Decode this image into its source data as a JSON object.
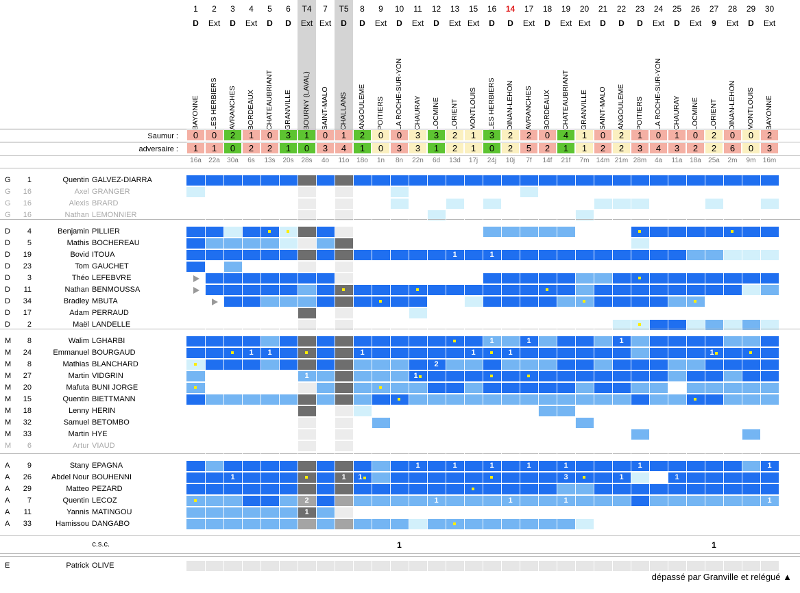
{
  "rounds": [
    {
      "n": "1",
      "t": "D",
      "opp": "BAYONNE",
      "s": "0",
      "a": "1",
      "col": "#f4b0a4",
      "d": "16a"
    },
    {
      "n": "2",
      "t": "Ext",
      "opp": "LES HERBIERS",
      "s": "0",
      "a": "1",
      "col": "#f4b0a4",
      "d": "22a"
    },
    {
      "n": "3",
      "t": "D",
      "opp": "AVRANCHES",
      "s": "2",
      "a": "0",
      "col": "#5dc431",
      "d": "30a"
    },
    {
      "n": "4",
      "t": "Ext",
      "opp": "BORDEAUX",
      "s": "1",
      "a": "2",
      "col": "#f4b0a4",
      "d": "6s"
    },
    {
      "n": "5",
      "t": "D",
      "opp": "CHATEAUBRIANT",
      "s": "0",
      "a": "2",
      "col": "#f4b0a4",
      "d": "13s"
    },
    {
      "n": "6",
      "t": "D",
      "opp": "GRANVILLE",
      "s": "3",
      "a": "1",
      "col": "#5dc431",
      "d": "20s"
    },
    {
      "n": "T4",
      "t": "Ext",
      "opp": "BOURNY (LAVAL)",
      "s": "1",
      "a": "0",
      "col": "#5dc431",
      "d": "28s",
      "cup": true
    },
    {
      "n": "7",
      "t": "Ext",
      "opp": "SAINT-MALO",
      "s": "0",
      "a": "3",
      "col": "#f4b0a4",
      "d": "4o"
    },
    {
      "n": "T5",
      "t": "D",
      "opp": "CHALLANS",
      "s": "1",
      "a": "4",
      "col": "#f4b0a4",
      "d": "11o",
      "cup": true
    },
    {
      "n": "8",
      "t": "D",
      "opp": "ANGOULEME",
      "s": "2",
      "a": "1",
      "col": "#5dc431",
      "d": "18o"
    },
    {
      "n": "9",
      "t": "Ext",
      "opp": "POITIERS",
      "s": "0",
      "a": "0",
      "col": "#fbf0c0",
      "d": "1n"
    },
    {
      "n": "10",
      "t": "D",
      "opp": "LA ROCHE-SUR-YON",
      "s": "0",
      "a": "3",
      "col": "#f4b0a4",
      "d": "8n"
    },
    {
      "n": "11",
      "t": "Ext",
      "opp": "CHAURAY",
      "s": "3",
      "a": "3",
      "col": "#fbf0c0",
      "d": "22n"
    },
    {
      "n": "12",
      "t": "D",
      "opp": "LOCMINE",
      "s": "3",
      "a": "1",
      "col": "#5dc431",
      "d": "6d"
    },
    {
      "n": "13",
      "t": "Ext",
      "opp": "LORIENT",
      "s": "2",
      "a": "2",
      "col": "#fbf0c0",
      "d": "13d"
    },
    {
      "n": "15",
      "t": "Ext",
      "opp": "MONTLOUIS",
      "s": "1",
      "a": "1",
      "col": "#fbf0c0",
      "d": "17j"
    },
    {
      "n": "16",
      "t": "D",
      "opp": "LES HERBIERS",
      "s": "3",
      "a": "0",
      "col": "#5dc431",
      "d": "24j"
    },
    {
      "n": "14",
      "t": "D",
      "opp": "DINAN-LEHON",
      "s": "2",
      "a": "2",
      "col": "#fbf0c0",
      "d": "10j",
      "red": true
    },
    {
      "n": "17",
      "t": "Ext",
      "opp": "AVRANCHES",
      "s": "2",
      "a": "5",
      "col": "#f4b0a4",
      "d": "7f"
    },
    {
      "n": "18",
      "t": "D",
      "opp": "BORDEAUX",
      "s": "0",
      "a": "2",
      "col": "#f4b0a4",
      "d": "14f"
    },
    {
      "n": "19",
      "t": "Ext",
      "opp": "CHATEAUBRIANT",
      "s": "4",
      "a": "1",
      "col": "#5dc431",
      "d": "21f"
    },
    {
      "n": "20",
      "t": "Ext",
      "opp": "GRANVILLE",
      "s": "1",
      "a": "1",
      "col": "#fbf0c0",
      "d": "7m"
    },
    {
      "n": "21",
      "t": "D",
      "opp": "SAINT-MALO",
      "s": "0",
      "a": "2",
      "col": "#f4b0a4",
      "d": "14m"
    },
    {
      "n": "22",
      "t": "D",
      "opp": "ANGOULEME",
      "s": "2",
      "a": "2",
      "col": "#fbf0c0",
      "d": "21m"
    },
    {
      "n": "23",
      "t": "D",
      "opp": "POITIERS",
      "s": "1",
      "a": "3",
      "col": "#f4b0a4",
      "d": "28m"
    },
    {
      "n": "24",
      "t": "Ext",
      "opp": "LA ROCHE-SUR-YON",
      "s": "0",
      "a": "4",
      "col": "#f4b0a4",
      "d": "4a"
    },
    {
      "n": "25",
      "t": "D",
      "opp": "CHAURAY",
      "s": "1",
      "a": "3",
      "col": "#f4b0a4",
      "d": "11a"
    },
    {
      "n": "26",
      "t": "Ext",
      "opp": "LOCMINE",
      "s": "0",
      "a": "2",
      "col": "#f4b0a4",
      "d": "18a"
    },
    {
      "n": "27",
      "t": "9",
      "opp": "LORIENT",
      "s": "2",
      "a": "2",
      "col": "#fbf0c0",
      "d": "25a"
    },
    {
      "n": "28",
      "t": "Ext",
      "opp": "DINAN-LEHON",
      "s": "0",
      "a": "6",
      "col": "#f4b0a4",
      "d": "2m"
    },
    {
      "n": "29",
      "t": "D",
      "opp": "MONTLOUIS",
      "s": "0",
      "a": "0",
      "col": "#fbf0c0",
      "d": "9m"
    },
    {
      "n": "30",
      "t": "Ext",
      "opp": "BAYONNE",
      "s": "2",
      "a": "3",
      "col": "#f4b0a4",
      "d": "16m"
    }
  ],
  "labels": {
    "saumur": "Saumur :",
    "adversaire": "adversaire :",
    "csc": "c.s.c.",
    "footer": "dépassé par Granville et relégué ▲"
  },
  "legend": {
    "starter": "#1f6ff0",
    "sub": "#74b5f3",
    "bench": "#d2f0fb",
    "cup_col": "#d4d4d4",
    "cup_dark": "#6e6e6e",
    "cup_mid": "#a4a4a4"
  },
  "csc_marks": [
    {
      "i": 11,
      "v": "1"
    },
    {
      "i": 28,
      "v": "1"
    }
  ],
  "groups": [
    {
      "players": [
        {
          "pos": "G",
          "num": "1",
          "first": "Quentin",
          "last": "GALVEZ-DIARRA",
          "c": "BBBBBBMBMBBBBBBBBBBBBBBBBBBBBBBB"
        },
        {
          "pos": "G",
          "num": "16",
          "first": "Axel",
          "last": "GRANGER",
          "c": "L..........L......L.............",
          "gray": true
        },
        {
          "pos": "G",
          "num": "16",
          "first": "Alexis",
          "last": "BRARD",
          "c": "...........L..L.L.....LLL...L..L",
          "gray": true
        },
        {
          "pos": "G",
          "num": "16",
          "first": "Nathan",
          "last": "LEMONNIER",
          "c": ".............L.......L..........",
          "gray": true
        }
      ]
    },
    {
      "players": [
        {
          "pos": "D",
          "num": "4",
          "first": "Benjamin",
          "last": "PILLIER",
          "c": "BBLBBLMB........SSSSS...BBBBBBBB",
          "m": {
            "4": "y",
            "5": "y",
            "24": "y",
            "29": "y"
          }
        },
        {
          "pos": "D",
          "num": "5",
          "first": "Mathis",
          "last": "BOCHEREAU",
          "c": "BSSSSL.SM...............L.......",
          "m": {}
        },
        {
          "pos": "D",
          "num": "19",
          "first": "Bovid",
          "last": "ITOUA",
          "c": "BBBBBBMBMBBBBBBBBBBBBBBBBBBSSLLL",
          "m": {
            "14": "1",
            "16": "1"
          }
        },
        {
          "pos": "D",
          "num": "23",
          "first": "Tom",
          "last": "GAUCHET",
          "c": "B.S.............................",
          "m": {}
        },
        {
          "pos": "D",
          "num": "3",
          "first": "Théo",
          "last": "LEFEBVRE",
          "c": "TBBBBBBB........BBBBBSSBBBBBBBBB",
          "m": {
            "14": "y",
            "24": "y"
          },
          "tri": [
            0
          ]
        },
        {
          "pos": "D",
          "num": "11",
          "first": "Nathan",
          "last": "BENMOUSSA",
          "c": "TBBBBBSBMBBBBBBBBBBBBSBBBBBBBBLS",
          "m": {
            "8": "y",
            "12": "y",
            "19": "y"
          },
          "tri": [
            0
          ]
        },
        {
          "pos": "D",
          "num": "34",
          "first": "Bradley",
          "last": "MBUTA",
          "c": ".TBBSSSBMBBBB..LBBBBSSBBBBSS....",
          "m": {
            "10": "y",
            "21": "y",
            "27": "y"
          },
          "tri": [
            1
          ]
        },
        {
          "pos": "D",
          "num": "17",
          "first": "Adam",
          "last": "PERRAUD",
          "c": "......M.....L...................",
          "m": {}
        },
        {
          "pos": "D",
          "num": "2",
          "first": "Maël",
          "last": "LANDELLE",
          "c": ".......................LLBBLSLSL",
          "m": {
            "24": "y"
          }
        }
      ]
    },
    {
      "players": [
        {
          "pos": "M",
          "num": "8",
          "first": "Walim",
          "last": "LGHARBI",
          "c": "BBBBSBMBMBBBBBBBSSBSBBSBSBBBBSSB",
          "m": {
            "14": "y",
            "16": "1",
            "18": "1",
            "23": "1"
          }
        },
        {
          "pos": "M",
          "num": "24",
          "first": "Emmanuel",
          "last": "BOURGAUD",
          "c": "BBBBBBMBMBBBBBBBBBBBBBBBSBBBBBBB",
          "m": {
            "2": "y",
            "3": "1",
            "4": "1",
            "6": "y",
            "9": "1",
            "15": "1",
            "16": "y",
            "17": "1",
            "28": "1y",
            "30": "y"
          }
        },
        {
          "pos": "M",
          "num": "8",
          "first": "Mathias",
          "last": "BLANCHARD",
          "c": "LBBBSBMBMSSSBBSSBSSSBBSBBBSSBBBB",
          "m": {
            "0": "y",
            "13": "2"
          }
        },
        {
          "pos": "M",
          "num": "27",
          "first": "Martin",
          "last": "VIDGRIN",
          "c": "S.....SSMSSSBBBBBBBBBBBBBBSBBSBB",
          "m": {
            "6": "1",
            "12": "1y",
            "16": "y",
            "18": "y"
          }
        },
        {
          "pos": "M",
          "num": "20",
          "first": "Mafuta",
          "last": "BUNI JORGE",
          "c": "S......SMSSSSBBSBBBBBSBBSS.SSSSS",
          "m": {
            "0": "y",
            "10": "y"
          }
        },
        {
          "pos": "M",
          "num": "15",
          "first": "Quentin",
          "last": "BIETTMANN",
          "c": "BSSSSSMSMSBBSSSSSSSSSSSSBSSBBSSS",
          "m": {
            "11": "y",
            "27": "y"
          }
        },
        {
          "pos": "M",
          "num": "18",
          "first": "Lenny",
          "last": "HERIN",
          "c": "......M..L.........SS...........",
          "m": {}
        },
        {
          "pos": "M",
          "num": "32",
          "first": "Samuel",
          "last": "BETOMBO",
          "c": "..........S..........S..........",
          "m": {}
        },
        {
          "pos": "M",
          "num": "33",
          "first": "Martin",
          "last": "HYE",
          "c": "........................S.....S.",
          "m": {}
        },
        {
          "pos": "M",
          "num": "6",
          "first": "Artur",
          "last": "VIAUD",
          "c": "................................",
          "m": {},
          "gray": true
        }
      ]
    },
    {
      "players": [
        {
          "pos": "A",
          "num": "9",
          "first": "Stany",
          "last": "EPAGNA",
          "c": "BSBBBBMBMBSBBBBBBBBBBBBBBBBBBBSB",
          "m": {
            "12": "1",
            "14": "1",
            "16": "1",
            "18": "1",
            "20": "1",
            "24": "1",
            "31": "1"
          }
        },
        {
          "pos": "A",
          "num": "26",
          "first": "Abdel Nour",
          "last": "BOUHENNI",
          "c": "BBBBBBMBMBSBBBBBBBBBBBBBL.BBBBBB",
          "m": {
            "2": "1",
            "6": "y",
            "8": "1",
            "9": "1y",
            "16": "y",
            "20": "3",
            "21": "y",
            "23": "1",
            "26": "1"
          }
        },
        {
          "pos": "A",
          "num": "29",
          "first": "Matteo",
          "last": "PEZARD",
          "c": "BBBBBBMBMBBBBBBBBBBBSSBBBBBBBBBB",
          "m": {
            "15": "y"
          }
        },
        {
          "pos": "A",
          "num": "7",
          "first": "Quentin",
          "last": "LECOZ",
          "c": "SSSBBSGBGSSSSSSSSSSSSSSSBSSSSSSS",
          "m": {
            "0": "y",
            "6": "2",
            "13": "1",
            "17": "1",
            "20": "1",
            "31": "1"
          }
        },
        {
          "pos": "A",
          "num": "11",
          "first": "Yannis",
          "last": "MATINGOU",
          "c": "SSSSSSMS........................",
          "m": {
            "6": "1"
          }
        },
        {
          "pos": "A",
          "num": "33",
          "first": "Hamissou",
          "last": "DANGABO",
          "c": "SSSSSSGSGSSSLSSSSSSSSL..........",
          "m": {
            "14": "y"
          }
        }
      ]
    }
  ],
  "staff": {
    "pos": "E",
    "first": "Patrick",
    "last": "OLIVE"
  }
}
